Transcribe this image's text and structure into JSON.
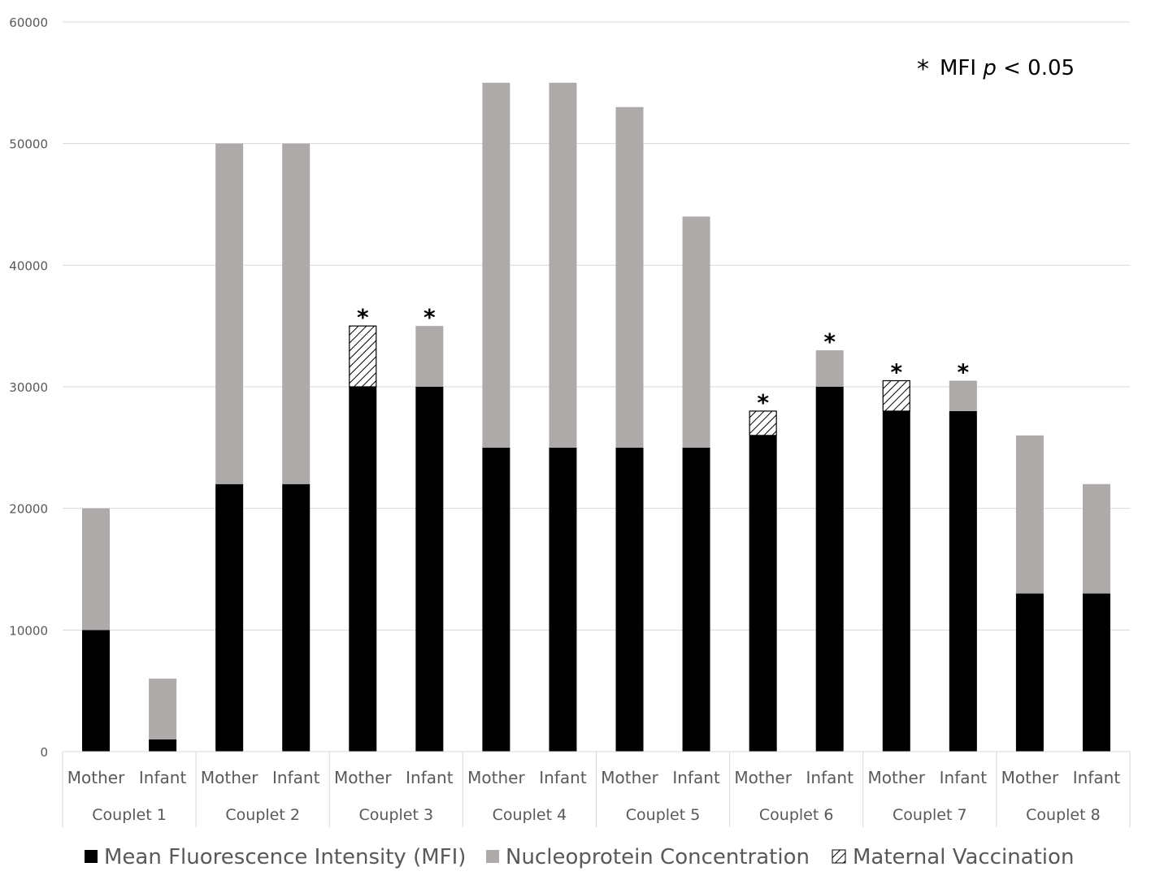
{
  "chart_data": {
    "type": "bar",
    "stacked": true,
    "title": "",
    "xlabel": "",
    "ylabel": "",
    "ylim": [
      0,
      60000
    ],
    "y_ticks": [
      "0",
      "10000",
      "20000",
      "30000",
      "40000",
      "50000",
      "60000"
    ],
    "grid": true,
    "legend_position": "bottom",
    "groups": [
      "Couplet 1",
      "Couplet 2",
      "Couplet 3",
      "Couplet 4",
      "Couplet 5",
      "Couplet 6",
      "Couplet 7",
      "Couplet 8"
    ],
    "categories": [
      "Mother",
      "Infant",
      "Mother",
      "Infant",
      "Mother",
      "Infant",
      "Mother",
      "Infant",
      "Mother",
      "Infant",
      "Mother",
      "Infant",
      "Mother",
      "Infant",
      "Mother",
      "Infant"
    ],
    "series": [
      {
        "name": "Mean Fluorescence Intensity (MFI)",
        "color": "#000000",
        "values": [
          10000,
          1000,
          22000,
          22000,
          30000,
          30000,
          25000,
          25000,
          25000,
          25000,
          26000,
          30000,
          28000,
          28000,
          13000,
          13000
        ]
      },
      {
        "name": "Nucleoprotein Concentration",
        "color": "#aeaaaa",
        "values": [
          10000,
          5000,
          28000,
          28000,
          0,
          5000,
          30000,
          30000,
          28000,
          19000,
          0,
          3000,
          0,
          2500,
          13000,
          9000
        ]
      },
      {
        "name": "Maternal Vaccination",
        "color": "hatched",
        "values": [
          0,
          0,
          0,
          0,
          5000,
          0,
          0,
          0,
          0,
          0,
          2000,
          0,
          2500,
          0,
          0,
          0
        ]
      }
    ],
    "significant": [
      false,
      false,
      false,
      false,
      true,
      true,
      false,
      false,
      false,
      false,
      true,
      true,
      true,
      true,
      false,
      false
    ],
    "annotation": {
      "symbol": "*",
      "text_before": "MFI ",
      "text_italic": "p",
      "text_after": " < 0.05"
    }
  }
}
